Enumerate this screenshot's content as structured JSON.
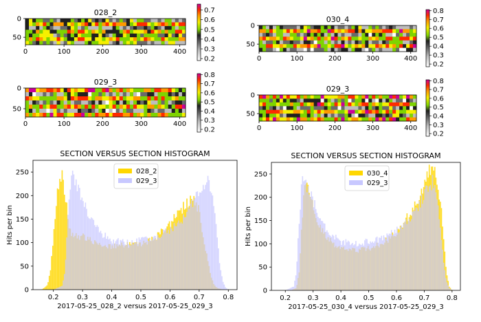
{
  "chart_data": [
    {
      "type": "heatmap",
      "title": "028_2",
      "x_ticks": [
        "0",
        "100",
        "200",
        "300",
        "400"
      ],
      "y_ticks": [
        "0",
        "50"
      ],
      "colorbar_ticks": [
        "0.7",
        "0.6",
        "0.5",
        "0.4",
        "0.3",
        "0.2"
      ],
      "xlim": [
        0,
        415
      ],
      "ylim": [
        0,
        70
      ],
      "colorbar_range": [
        0.18,
        0.76
      ],
      "colormap": [
        "#ffffff",
        "#bdbdbd",
        "#6a6a6a",
        "#202020",
        "#7fd400",
        "#f6f000",
        "#ff9900",
        "#ff2a00",
        "#cc0099"
      ],
      "bands": [
        0.35,
        0.65,
        0.35,
        0.65,
        0.35,
        0.65,
        0.35
      ]
    },
    {
      "type": "heatmap",
      "title": "030_4",
      "x_ticks": [
        "0",
        "100",
        "200",
        "300",
        "400"
      ],
      "y_ticks": [
        "0",
        "50"
      ],
      "colorbar_ticks": [
        "0.8",
        "0.7",
        "0.6",
        "0.5",
        "0.4",
        "0.3",
        "0.2"
      ],
      "xlim": [
        0,
        415
      ],
      "ylim": [
        0,
        70
      ],
      "colorbar_range": [
        0.17,
        0.81
      ],
      "colormap": [
        "#ffffff",
        "#bdbdbd",
        "#6a6a6a",
        "#202020",
        "#7fd400",
        "#f6f000",
        "#ff9900",
        "#ff2a00",
        "#cc0099"
      ],
      "bands": [
        0.3,
        0.7,
        0.3,
        0.7,
        0.3,
        0.7,
        0.3
      ]
    },
    {
      "type": "heatmap",
      "title": "029_3",
      "x_ticks": [
        "0",
        "100",
        "200",
        "300",
        "400"
      ],
      "y_ticks": [
        "0",
        "50"
      ],
      "colorbar_ticks": [
        "0.8",
        "0.7",
        "0.6",
        "0.5",
        "0.4",
        "0.3",
        "0.2"
      ],
      "xlim": [
        0,
        415
      ],
      "ylim": [
        0,
        70
      ],
      "colorbar_range": [
        0.17,
        0.81
      ],
      "colormap": [
        "#ffffff",
        "#bdbdbd",
        "#6a6a6a",
        "#202020",
        "#7fd400",
        "#f6f000",
        "#ff9900",
        "#ff2a00",
        "#cc0099"
      ],
      "bands": [
        0.7,
        0.3,
        0.7,
        0.3,
        0.7,
        0.3,
        0.7
      ]
    },
    {
      "type": "heatmap",
      "title": "029_3",
      "x_ticks": [
        "0",
        "100",
        "200",
        "300",
        "400"
      ],
      "y_ticks": [
        "0",
        "50"
      ],
      "colorbar_ticks": [
        "0.8",
        "0.7",
        "0.6",
        "0.5",
        "0.4",
        "0.3",
        "0.2"
      ],
      "xlim": [
        0,
        415
      ],
      "ylim": [
        0,
        70
      ],
      "colorbar_range": [
        0.17,
        0.81
      ],
      "colormap": [
        "#ffffff",
        "#bdbdbd",
        "#6a6a6a",
        "#202020",
        "#7fd400",
        "#f6f000",
        "#ff9900",
        "#ff2a00",
        "#cc0099"
      ],
      "bands": [
        0.7,
        0.3,
        0.7,
        0.3,
        0.7,
        0.3,
        0.7
      ]
    },
    {
      "type": "bar",
      "title": "SECTION VERSUS SECTION HISTOGRAM",
      "xlabel": "2017-05-25_028_2 versus 2017-05-25_029_3",
      "ylabel": "Hits per bin",
      "xlim": [
        0.13,
        0.83
      ],
      "ylim": [
        0,
        275
      ],
      "x_ticks": [
        0.2,
        0.3,
        0.4,
        0.5,
        0.6,
        0.7,
        0.8
      ],
      "y_ticks": [
        0,
        50,
        100,
        150,
        200,
        250
      ],
      "grid": false,
      "legend": "top-center",
      "bin_width": 0.004,
      "series": [
        {
          "name": "028_2",
          "color": "#ffd700",
          "x": [
            0.16,
            0.18,
            0.19,
            0.2,
            0.21,
            0.22,
            0.23,
            0.24,
            0.25,
            0.26,
            0.28,
            0.3,
            0.35,
            0.4,
            0.45,
            0.5,
            0.55,
            0.6,
            0.63,
            0.66,
            0.68,
            0.7,
            0.72,
            0.74,
            0.75,
            0.76,
            0.78
          ],
          "y": [
            0,
            10,
            40,
            110,
            190,
            232,
            240,
            210,
            150,
            120,
            115,
            112,
            100,
            92,
            95,
            95,
            110,
            140,
            165,
            185,
            195,
            170,
            90,
            30,
            12,
            4,
            0
          ]
        },
        {
          "name": "029_3",
          "color": "#c8c8ff",
          "x": [
            0.2,
            0.23,
            0.24,
            0.25,
            0.26,
            0.27,
            0.28,
            0.3,
            0.33,
            0.36,
            0.4,
            0.45,
            0.5,
            0.55,
            0.6,
            0.65,
            0.68,
            0.7,
            0.72,
            0.73,
            0.74,
            0.75,
            0.76,
            0.77,
            0.78,
            0.79,
            0.8
          ],
          "y": [
            0,
            8,
            40,
            150,
            230,
            250,
            220,
            190,
            150,
            120,
            105,
            100,
            105,
            110,
            128,
            155,
            185,
            205,
            225,
            232,
            220,
            180,
            120,
            60,
            20,
            5,
            0
          ]
        }
      ]
    },
    {
      "type": "bar",
      "title": "SECTION VERSUS SECTION HISTOGRAM",
      "xlabel": "2017-05-25_030_4 versus 2017-05-25_029_3",
      "ylabel": "Hits per bin",
      "xlim": [
        0.15,
        0.83
      ],
      "ylim": [
        0,
        275
      ],
      "x_ticks": [
        0.2,
        0.3,
        0.4,
        0.5,
        0.6,
        0.7,
        0.8
      ],
      "y_ticks": [
        0,
        50,
        100,
        150,
        200,
        250
      ],
      "grid": false,
      "legend": "top-center",
      "bin_width": 0.004,
      "series": [
        {
          "name": "030_4",
          "color": "#ffd700",
          "x": [
            0.22,
            0.24,
            0.25,
            0.26,
            0.27,
            0.28,
            0.29,
            0.3,
            0.32,
            0.35,
            0.4,
            0.45,
            0.5,
            0.55,
            0.6,
            0.65,
            0.68,
            0.7,
            0.72,
            0.73,
            0.74,
            0.75,
            0.76,
            0.77,
            0.78,
            0.79,
            0.8
          ],
          "y": [
            0,
            5,
            40,
            150,
            230,
            240,
            215,
            175,
            140,
            110,
            90,
            85,
            90,
            100,
            125,
            165,
            200,
            230,
            255,
            262,
            250,
            220,
            180,
            110,
            40,
            8,
            0
          ]
        },
        {
          "name": "029_3",
          "color": "#c8c8ff",
          "x": [
            0.2,
            0.23,
            0.24,
            0.25,
            0.26,
            0.27,
            0.28,
            0.3,
            0.33,
            0.36,
            0.4,
            0.45,
            0.5,
            0.55,
            0.6,
            0.65,
            0.68,
            0.7,
            0.72,
            0.73,
            0.74,
            0.75,
            0.76,
            0.77,
            0.78,
            0.79,
            0.8
          ],
          "y": [
            0,
            8,
            40,
            150,
            230,
            250,
            220,
            190,
            150,
            120,
            105,
            100,
            105,
            110,
            128,
            155,
            185,
            205,
            225,
            232,
            220,
            180,
            120,
            60,
            20,
            5,
            0
          ]
        }
      ]
    }
  ]
}
